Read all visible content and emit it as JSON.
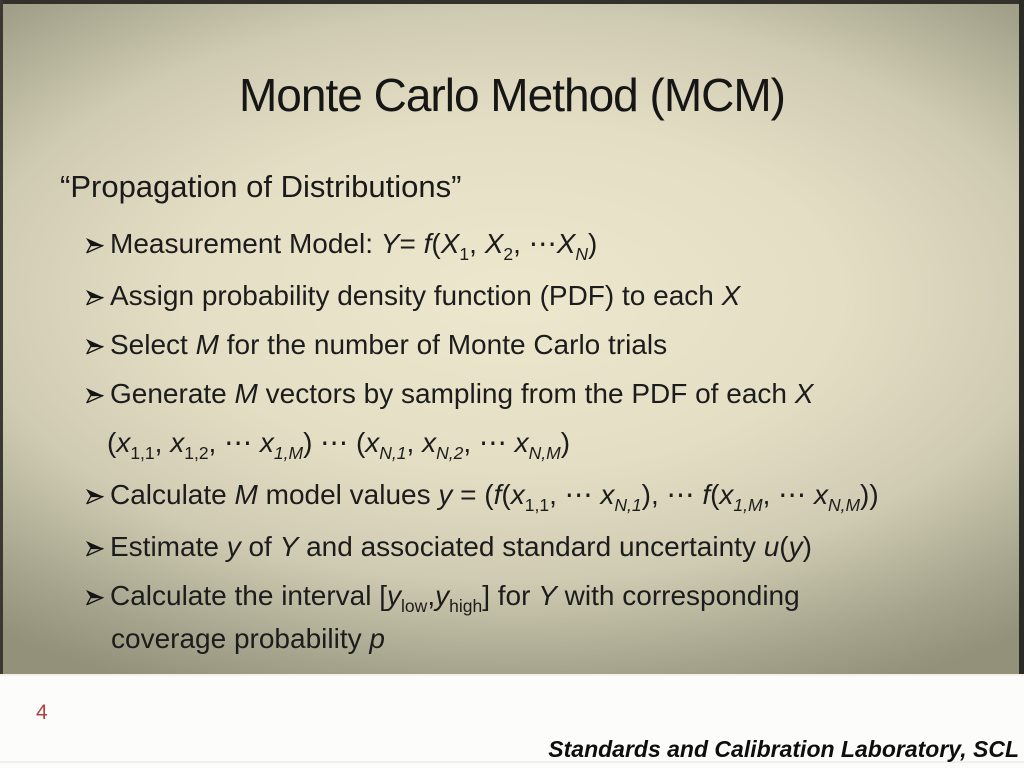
{
  "slide": {
    "title": "Monte Carlo Method (MCM)",
    "subtitle": "“Propagation of Distributions”",
    "bullets": [
      {
        "marker": true,
        "segments": [
          {
            "t": "Measurement Model: "
          },
          {
            "t": "Y",
            "i": 1
          },
          {
            "t": "= "
          },
          {
            "t": "f",
            "i": 1
          },
          {
            "t": "("
          },
          {
            "t": "X",
            "i": 1
          },
          {
            "t": "1",
            "sub": 1
          },
          {
            "t": ", "
          },
          {
            "t": "X",
            "i": 1
          },
          {
            "t": "2",
            "sub": 1
          },
          {
            "t": ", ⋯"
          },
          {
            "t": "X",
            "i": 1
          },
          {
            "t": "N",
            "sub": 1,
            "i": 1
          },
          {
            "t": ")"
          }
        ]
      },
      {
        "marker": true,
        "segments": [
          {
            "t": "Assign probability density function (PDF) to each "
          },
          {
            "t": "X",
            "i": 1
          }
        ]
      },
      {
        "marker": true,
        "segments": [
          {
            "t": "Select "
          },
          {
            "t": "M",
            "i": 1
          },
          {
            "t": " for the number of Monte Carlo trials"
          }
        ]
      },
      {
        "marker": true,
        "segments": [
          {
            "t": "Generate "
          },
          {
            "t": "M",
            "i": 1
          },
          {
            "t": " vectors by sampling from the PDF of each "
          },
          {
            "t": "X",
            "i": 1
          }
        ]
      },
      {
        "marker": false,
        "segments": [
          {
            "t": "("
          },
          {
            "t": "x",
            "i": 1
          },
          {
            "t": "1,1",
            "sub": 1
          },
          {
            "t": ", "
          },
          {
            "t": "x",
            "i": 1
          },
          {
            "t": "1,2",
            "sub": 1
          },
          {
            "t": ", ⋯ "
          },
          {
            "t": "x",
            "i": 1
          },
          {
            "t": "1,M",
            "sub": 1,
            "i": 1
          },
          {
            "t": ") ⋯ ("
          },
          {
            "t": "x",
            "i": 1
          },
          {
            "t": "N,1",
            "sub": 1,
            "i": 1
          },
          {
            "t": ", "
          },
          {
            "t": "x",
            "i": 1
          },
          {
            "t": "N,2",
            "sub": 1,
            "i": 1
          },
          {
            "t": ", ⋯ "
          },
          {
            "t": "x",
            "i": 1
          },
          {
            "t": "N,M",
            "sub": 1,
            "i": 1
          },
          {
            "t": ")"
          }
        ]
      },
      {
        "marker": true,
        "segments": [
          {
            "t": "Calculate "
          },
          {
            "t": "M",
            "i": 1
          },
          {
            "t": " model values "
          },
          {
            "t": "y",
            "i": 1
          },
          {
            "t": " = ("
          },
          {
            "t": "f",
            "i": 1
          },
          {
            "t": "("
          },
          {
            "t": "x",
            "i": 1
          },
          {
            "t": "1,1",
            "sub": 1
          },
          {
            "t": ", ⋯ "
          },
          {
            "t": "x",
            "i": 1
          },
          {
            "t": "N,1",
            "sub": 1,
            "i": 1
          },
          {
            "t": "), ⋯ "
          },
          {
            "t": "f",
            "i": 1
          },
          {
            "t": "("
          },
          {
            "t": "x",
            "i": 1
          },
          {
            "t": "1,M",
            "sub": 1,
            "i": 1
          },
          {
            "t": ", ⋯ "
          },
          {
            "t": "x",
            "i": 1
          },
          {
            "t": "N,M",
            "sub": 1,
            "i": 1
          },
          {
            "t": "))"
          }
        ]
      },
      {
        "marker": true,
        "segments": [
          {
            "t": "Estimate "
          },
          {
            "t": "y",
            "i": 1
          },
          {
            "t": " of "
          },
          {
            "t": "Y",
            "i": 1
          },
          {
            "t": " and associated standard uncertainty "
          },
          {
            "t": "u",
            "i": 1
          },
          {
            "t": "("
          },
          {
            "t": "y",
            "i": 1
          },
          {
            "t": ")"
          }
        ]
      },
      {
        "marker": true,
        "segments": [
          {
            "t": "Calculate the interval ["
          },
          {
            "t": "y",
            "i": 1
          },
          {
            "t": "low",
            "sub": 1
          },
          {
            "t": ","
          },
          {
            "t": "y",
            "i": 1
          },
          {
            "t": "high",
            "sub": 1
          },
          {
            "t": "] for "
          },
          {
            "t": "Y",
            "i": 1
          },
          {
            "t": " with corresponding"
          },
          {
            "br": 1
          },
          {
            "t": "coverage probability "
          },
          {
            "t": "p",
            "i": 1
          }
        ]
      }
    ],
    "page_number": "4",
    "footer": "Standards and Calibration Laboratory, SCL",
    "colors": {
      "frame": "#32312b",
      "background_center": "#ece7cd",
      "background_edge": "#93917a",
      "text": "#1c1c1c",
      "page_number": "#b04142",
      "footer_band": "#fcfcfa"
    }
  }
}
